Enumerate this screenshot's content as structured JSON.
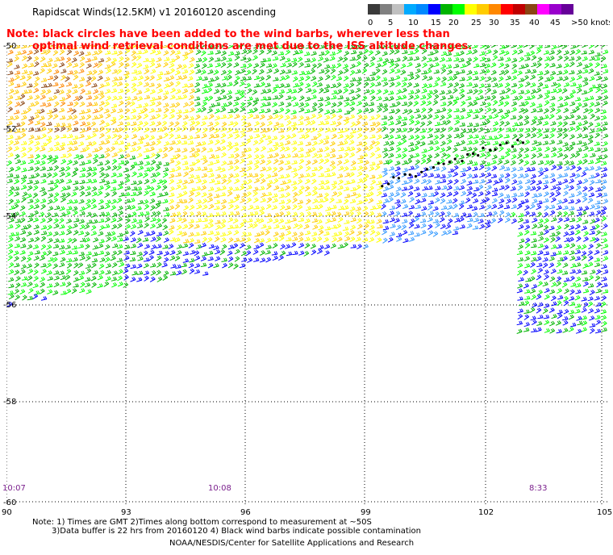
{
  "title": "Rapidscat Winds(12.5KM)  v1  20160120  ascending",
  "note_line1": "Note: black circles have been added to the wind barbs, wherever less than",
  "note_line2": "optimal wind retrieval conditions are met due to the ISS altitude changes.",
  "legend": {
    "labels": [
      "0",
      "5",
      "10",
      "15",
      "20",
      "25",
      "30",
      "35",
      "40",
      "45",
      ">50 knots"
    ],
    "colors": [
      "#3a3a3a",
      "#808080",
      "#c0c0c0",
      "#00aaff",
      "#0088ff",
      "#0000ff",
      "#00b400",
      "#00ff00",
      "#ffff00",
      "#ffcc00",
      "#ff8800",
      "#ff0000",
      "#c00000",
      "#8b4513",
      "#ff00ff",
      "#9900cc",
      "#660099"
    ]
  },
  "axes": {
    "x_ticks": [
      "90",
      "93",
      "96",
      "99",
      "102",
      "105"
    ],
    "y_ticks": [
      "-50",
      "-52",
      "-54",
      "-56",
      "-58",
      "-60"
    ]
  },
  "times": [
    "10:07",
    "10:08",
    "8:33"
  ],
  "footnote_line1": "Note: 1) Times are GMT 2)Times along bottom correspond to measurement at ~50S",
  "footnote_line2": "3)Data buffer is 22 hrs from 20160120 4) Black wind barbs indicate possible contamination",
  "credit": "NOAA/NESDIS/Center for Satellite Applications and Research",
  "wind_color_key": {
    "blue": "#0000ff",
    "lightblue": "#3399ff",
    "green": "#00b400",
    "lightgreen": "#00ff00",
    "yellow": "#ffff00",
    "gold": "#ffcc00",
    "orange": "#ff8800",
    "red": "#ff0000",
    "brown": "#8b4513",
    "black": "#000000"
  }
}
